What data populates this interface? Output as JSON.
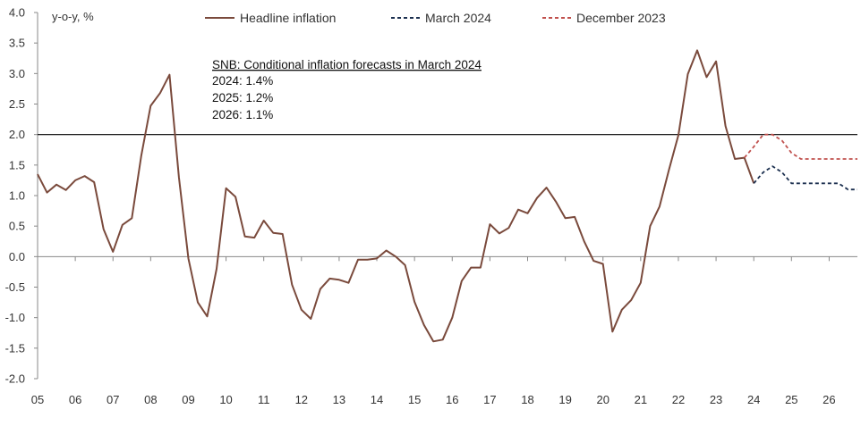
{
  "chart_data": {
    "type": "line",
    "ylabel": "y-o-y, %",
    "ylim": [
      -2.0,
      4.0
    ],
    "y_ticks": [
      "4.0",
      "3.5",
      "3.0",
      "2.5",
      "2.0",
      "1.5",
      "1.0",
      "0.5",
      "0.0",
      "-0.5",
      "-1.0",
      "-1.5",
      "-2.0"
    ],
    "x_range": [
      2005.0,
      2026.75
    ],
    "x_tick_labels": [
      "05",
      "06",
      "07",
      "08",
      "09",
      "10",
      "11",
      "12",
      "13",
      "14",
      "15",
      "16",
      "17",
      "18",
      "19",
      "20",
      "21",
      "22",
      "23",
      "24",
      "25",
      "26"
    ],
    "reference_line": {
      "y": 2.0
    },
    "legend": {
      "headline": "Headline inflation",
      "march2024": "March 2024",
      "december2023": "December 2023"
    },
    "annotation": {
      "title": "SNB: Conditional inflation forecasts in March 2024",
      "lines": [
        "2024:  1.4%",
        "2025:  1.2%",
        "2026:  1.1%"
      ]
    },
    "colors": {
      "headline": "#7a4a3c",
      "march2024": "#1b2f4f",
      "december2023": "#c0504d",
      "axis": "#888888",
      "reference": "#000000"
    },
    "series": [
      {
        "name": "Headline inflation",
        "key": "headline",
        "x": [
          2005.0,
          2005.25,
          2005.5,
          2005.75,
          2006.0,
          2006.25,
          2006.5,
          2006.75,
          2007.0,
          2007.25,
          2007.5,
          2007.75,
          2008.0,
          2008.25,
          2008.5,
          2008.75,
          2009.0,
          2009.25,
          2009.5,
          2009.75,
          2010.0,
          2010.25,
          2010.5,
          2010.75,
          2011.0,
          2011.25,
          2011.5,
          2011.75,
          2012.0,
          2012.25,
          2012.5,
          2012.75,
          2013.0,
          2013.25,
          2013.5,
          2013.75,
          2014.0,
          2014.25,
          2014.5,
          2014.75,
          2015.0,
          2015.25,
          2015.5,
          2015.75,
          2016.0,
          2016.25,
          2016.5,
          2016.75,
          2017.0,
          2017.25,
          2017.5,
          2017.75,
          2018.0,
          2018.25,
          2018.5,
          2018.75,
          2019.0,
          2019.25,
          2019.5,
          2019.75,
          2020.0,
          2020.25,
          2020.5,
          2020.75,
          2021.0,
          2021.25,
          2021.5,
          2021.75,
          2022.0,
          2022.25,
          2022.5,
          2022.75,
          2023.0,
          2023.25,
          2023.5,
          2023.75,
          2024.0
        ],
        "y": [
          1.35,
          1.05,
          1.18,
          1.09,
          1.25,
          1.32,
          1.22,
          0.45,
          0.08,
          0.52,
          0.63,
          1.65,
          2.47,
          2.68,
          2.98,
          1.3,
          -0.03,
          -0.75,
          -0.98,
          -0.2,
          1.12,
          0.98,
          0.33,
          0.31,
          0.59,
          0.39,
          0.37,
          -0.46,
          -0.87,
          -1.02,
          -0.53,
          -0.36,
          -0.38,
          -0.43,
          -0.05,
          -0.05,
          -0.03,
          0.1,
          0.0,
          -0.14,
          -0.74,
          -1.12,
          -1.39,
          -1.36,
          -1.0,
          -0.4,
          -0.18,
          -0.18,
          0.53,
          0.38,
          0.47,
          0.77,
          0.71,
          0.96,
          1.13,
          0.9,
          0.63,
          0.65,
          0.25,
          -0.07,
          -0.12,
          -1.23,
          -0.87,
          -0.71,
          -0.43,
          0.5,
          0.82,
          1.42,
          1.99,
          2.99,
          3.38,
          2.94,
          3.2,
          2.14,
          1.6,
          1.62,
          1.2
        ]
      },
      {
        "name": "March 2024",
        "key": "march2024",
        "dashed": true,
        "x": [
          2024.0,
          2024.25,
          2024.5,
          2024.75,
          2025.0,
          2025.25,
          2025.5,
          2025.75,
          2026.0,
          2026.25,
          2026.5,
          2026.75
        ],
        "y": [
          1.2,
          1.38,
          1.48,
          1.38,
          1.2,
          1.2,
          1.2,
          1.2,
          1.2,
          1.2,
          1.1,
          1.1
        ]
      },
      {
        "name": "December 2023",
        "key": "december2023",
        "dashed": true,
        "x": [
          2023.75,
          2024.0,
          2024.25,
          2024.5,
          2024.75,
          2025.0,
          2025.25,
          2025.5,
          2025.75,
          2026.0,
          2026.25,
          2026.5,
          2026.75
        ],
        "y": [
          1.62,
          1.8,
          2.0,
          2.0,
          1.9,
          1.7,
          1.6,
          1.6,
          1.6,
          1.6,
          1.6,
          1.6,
          1.6
        ]
      }
    ]
  }
}
